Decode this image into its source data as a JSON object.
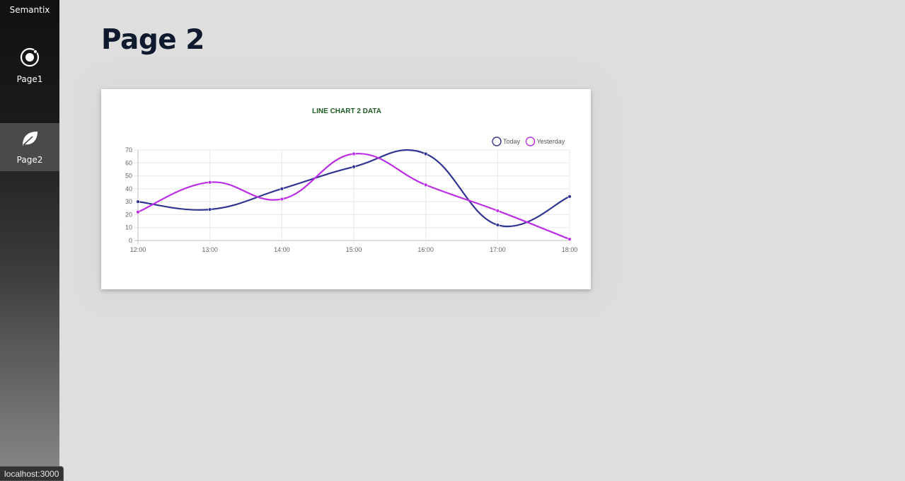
{
  "app": {
    "brand": "Semantix"
  },
  "sidebar": {
    "items": [
      {
        "label": "Page1",
        "icon": "ionic-circle-icon",
        "active": false
      },
      {
        "label": "Page2",
        "icon": "leaf-icon",
        "active": true
      }
    ]
  },
  "main": {
    "title": "Page 2"
  },
  "status_bar": {
    "url": "localhost:3000"
  },
  "colors": {
    "title_green": "#1e5b24",
    "today": "#2f3590",
    "yesterday": "#bb2ee6"
  },
  "chart_data": {
    "type": "line",
    "title": "LINE CHART 2 DATA",
    "x": [
      "12:00",
      "13:00",
      "14:00",
      "15:00",
      "16:00",
      "17:00",
      "18:00"
    ],
    "series": [
      {
        "name": "Today",
        "values": [
          30,
          24,
          40,
          57,
          67,
          12,
          34
        ]
      },
      {
        "name": "Yesterday",
        "values": [
          22,
          45,
          32,
          67,
          43,
          23,
          1
        ]
      }
    ],
    "ylim": [
      0,
      70
    ],
    "yticks": [
      "0",
      "10",
      "20",
      "30",
      "40",
      "50",
      "60",
      "70"
    ],
    "grid": true,
    "legend": "top-right"
  }
}
